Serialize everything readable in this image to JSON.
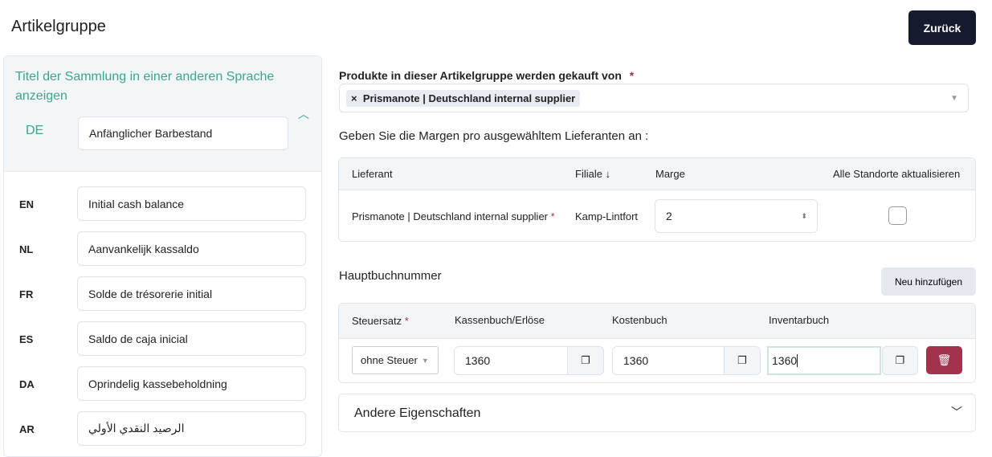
{
  "header": {
    "title": "Artikelgruppe",
    "back_label": "Zurück"
  },
  "translations": {
    "title": "Titel der Sammlung in einer anderen Sprache anzeigen",
    "default_lang": "DE",
    "default_value": "Anfänglicher Barbestand",
    "items": [
      {
        "lang": "EN",
        "value": "Initial cash balance"
      },
      {
        "lang": "NL",
        "value": "Aanvankelijk kassaldo"
      },
      {
        "lang": "FR",
        "value": "Solde de trésorerie initial"
      },
      {
        "lang": "ES",
        "value": "Saldo de caja inicial"
      },
      {
        "lang": "DA",
        "value": "Oprindelig kassebeholdning"
      },
      {
        "lang": "AR",
        "value": "الرصيد النقدي الأولي"
      }
    ]
  },
  "suppliers": {
    "label": "Produkte in dieser Artikelgruppe werden gekauft von",
    "selected": "Prismanote | Deutschland internal supplier",
    "remove": "×"
  },
  "margins": {
    "label": "Geben Sie die Margen pro ausgewähltem Lieferanten an :",
    "headers": [
      "Lieferant",
      "Filiale ↓",
      "Marge",
      "Alle Standorte aktualisieren"
    ],
    "row": {
      "supplier": "Prismanote | Deutschland internal supplier",
      "branch": "Kamp-Lintfort",
      "margin": "2",
      "update_all": false
    }
  },
  "ledger": {
    "label": "Hauptbuchnummer",
    "add_label": "Neu hinzufügen",
    "headers": [
      "Steuersatz",
      "Kassenbuch/Erlöse",
      "Kostenbuch",
      "Inventarbuch"
    ],
    "row": {
      "tax": "ohne Steuer",
      "cash": "1360",
      "cost": "1360",
      "inventory": "1360"
    }
  },
  "other": {
    "label": "Andere Eigenschaften"
  },
  "colors": {
    "accent": "#3aa68a",
    "primary": "#161a2f",
    "danger": "#a3324c"
  }
}
